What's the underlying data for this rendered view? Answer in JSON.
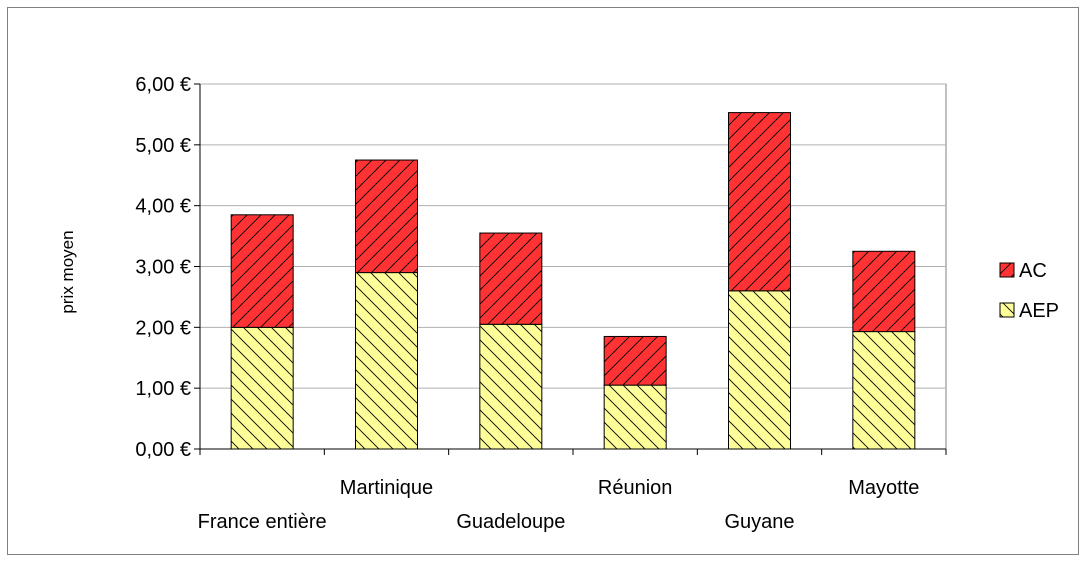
{
  "chart_data": {
    "type": "bar",
    "stacked": true,
    "title": "",
    "xlabel": "",
    "ylabel": "prix moyen",
    "ylim": [
      0,
      6
    ],
    "yticks": [
      "0,00 €",
      "1,00 €",
      "2,00 €",
      "3,00 €",
      "4,00 €",
      "5,00 €",
      "6,00 €"
    ],
    "categories": [
      "France entière",
      "Martinique",
      "Guadeloupe",
      "Réunion",
      "Guyane",
      "Mayotte"
    ],
    "series": [
      {
        "name": "AEP",
        "values": [
          2.0,
          2.9,
          2.05,
          1.05,
          2.6,
          1.93
        ],
        "color": "#ffff99",
        "hatch": "backslash"
      },
      {
        "name": "AC",
        "values": [
          1.85,
          1.85,
          1.5,
          0.8,
          2.93,
          1.32
        ],
        "color": "#ff3333",
        "hatch": "slash"
      }
    ],
    "grid": true,
    "legend": "right"
  }
}
